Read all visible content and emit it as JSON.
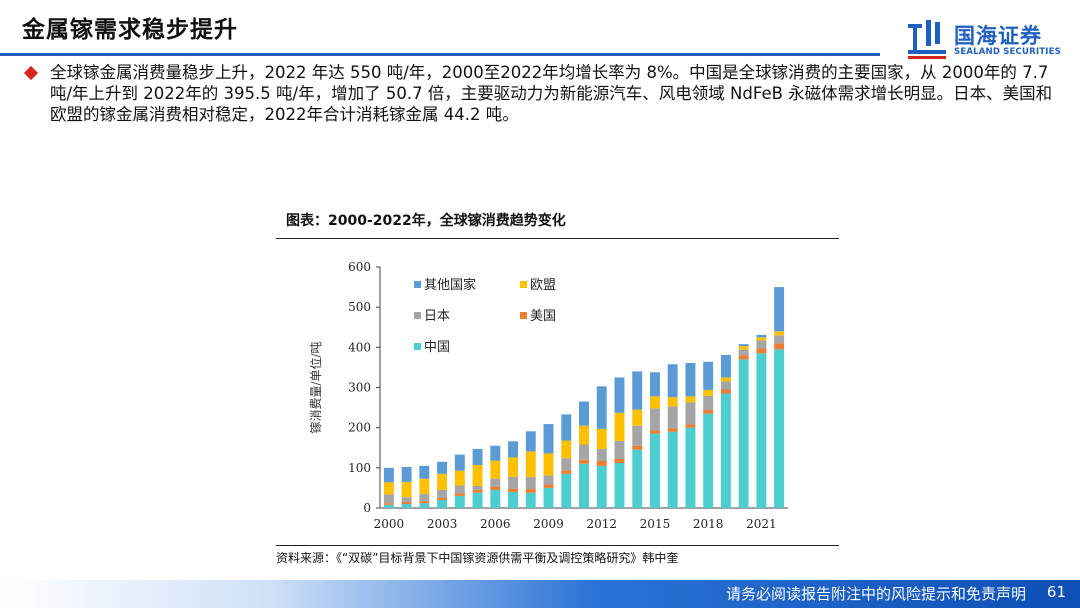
{
  "header": {
    "title": "金属镓需求稳步提升",
    "logo_cn": "国海证券",
    "logo_en": "SEALAND SECURITIES"
  },
  "bullet": {
    "text": "全球镓金属消费量稳步上升，2022 年达 550 吨/年，2000至2022年均增长率为 8%。中国是全球镓消费的主要国家，从 2000年的 7.7吨/年上升到 2022年的 395.5 吨/年，增加了 50.7 倍，主要驱动力为新能源汽车、风电领域 NdFeB 永磁体需求增长明显。日本、美国和欧盟的镓金属消费相对稳定，2022年合计消耗镓金属 44.2 吨。"
  },
  "chart_caption": "图表：2000-2022年，全球镓消费趋势变化",
  "source": "资料来源：《“双碳”目标背景下中国镓资源供需平衡及调控策略研究》韩中奎",
  "footer": {
    "disclaimer": "请务必阅读报告附注中的风险提示和免责声明",
    "page_number": "61"
  },
  "colors": {
    "accent": "#1f5fbf",
    "china": "#4ecdd1",
    "usa": "#ed7d31",
    "japan": "#a5a5a5",
    "eu": "#ffc000",
    "other": "#5b9bd5"
  },
  "chart_data": {
    "type": "bar",
    "stacked": true,
    "title": "",
    "xlabel": "",
    "ylabel": "镓消费量/单位/吨",
    "ylim": [
      0,
      600
    ],
    "yticks": [
      "0",
      "100",
      "200",
      "300",
      "400",
      "500",
      "600"
    ],
    "categories": [
      "2000",
      "2001",
      "2002",
      "2003",
      "2004",
      "2005",
      "2006",
      "2007",
      "2008",
      "2009",
      "2010",
      "2011",
      "2012",
      "2013",
      "2014",
      "2015",
      "2016",
      "2017",
      "2018",
      "2019",
      "2020",
      "2021",
      "2022"
    ],
    "xtick_labels": [
      "2000",
      "2003",
      "2006",
      "2009",
      "2012",
      "2015",
      "2018",
      "2021"
    ],
    "legend": [
      "其他国家",
      "欧盟",
      "日本",
      "美国",
      "中国"
    ],
    "series": [
      {
        "name": "中国",
        "key": "china",
        "values": [
          8,
          10,
          12,
          20,
          30,
          38,
          45,
          40,
          38,
          50,
          85,
          110,
          105,
          112,
          145,
          185,
          190,
          200,
          235,
          285,
          370,
          385,
          395
        ]
      },
      {
        "name": "美国",
        "key": "usa",
        "values": [
          4,
          5,
          5,
          5,
          6,
          7,
          8,
          8,
          9,
          9,
          9,
          10,
          12,
          10,
          10,
          8,
          8,
          8,
          9,
          10,
          10,
          12,
          15
        ]
      },
      {
        "name": "日本",
        "key": "japan",
        "values": [
          22,
          12,
          18,
          20,
          20,
          10,
          20,
          30,
          30,
          22,
          30,
          38,
          30,
          45,
          50,
          55,
          55,
          55,
          35,
          20,
          15,
          20,
          20
        ]
      },
      {
        "name": "欧盟",
        "key": "eu",
        "values": [
          30,
          38,
          38,
          40,
          37,
          52,
          45,
          48,
          64,
          55,
          44,
          47,
          50,
          70,
          40,
          30,
          23,
          15,
          15,
          10,
          8,
          8,
          10
        ]
      },
      {
        "name": "其他国家",
        "key": "other",
        "values": [
          36,
          37,
          32,
          30,
          40,
          40,
          37,
          40,
          50,
          73,
          65,
          60,
          106,
          88,
          95,
          60,
          82,
          83,
          70,
          56,
          5,
          6,
          110
        ]
      }
    ]
  }
}
